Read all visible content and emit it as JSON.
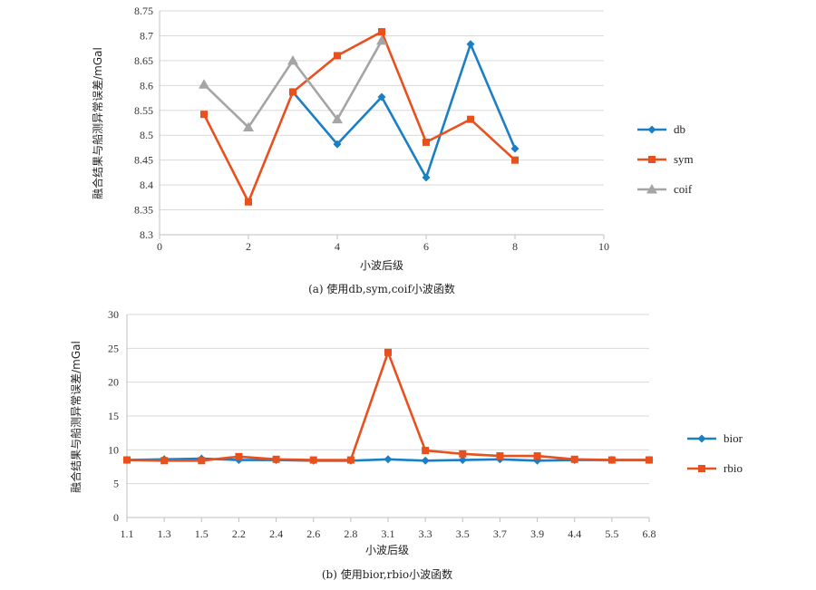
{
  "chart_data": [
    {
      "type": "line",
      "caption": "(a) 使用db,sym,coif小波函数",
      "xlabel": "小波后级",
      "ylabel": "融合结果与船测异常误差/mGal",
      "xlim": [
        0,
        10
      ],
      "ylim": [
        8.3,
        8.75
      ],
      "xticks": [
        "0",
        "2",
        "4",
        "6",
        "8",
        "10"
      ],
      "yticks": [
        "8.3",
        "8.35",
        "8.4",
        "8.45",
        "8.5",
        "8.55",
        "8.6",
        "8.65",
        "8.7",
        "8.75"
      ],
      "grid": true,
      "legend": "right",
      "series": [
        {
          "name": "db",
          "color": "#1a7fc4",
          "marker": "diamond",
          "x": [
            3,
            4,
            5,
            6,
            7,
            8
          ],
          "y": [
            8.587,
            8.482,
            8.577,
            8.415,
            8.683,
            8.473
          ]
        },
        {
          "name": "sym",
          "color": "#e8501e",
          "marker": "square",
          "x": [
            1,
            2,
            3,
            4,
            5,
            6,
            7,
            8
          ],
          "y": [
            8.542,
            8.366,
            8.587,
            8.66,
            8.708,
            8.486,
            8.532,
            8.45
          ]
        },
        {
          "name": "coif",
          "color": "#a5a5a5",
          "marker": "triangle",
          "x": [
            1,
            2,
            3,
            4,
            5
          ],
          "y": [
            8.602,
            8.516,
            8.65,
            8.532,
            8.69
          ]
        }
      ]
    },
    {
      "type": "line",
      "caption": "(b) 使用bior,rbio小波函数",
      "xlabel": "小波后级",
      "ylabel": "融合结果与船测异常误差/mGal",
      "categories": [
        "1.1",
        "1.3",
        "1.5",
        "2.2",
        "2.4",
        "2.6",
        "2.8",
        "3.1",
        "3.3",
        "3.5",
        "3.7",
        "3.9",
        "4.4",
        "5.5",
        "6.8"
      ],
      "ylim": [
        0,
        30
      ],
      "yticks": [
        "0",
        "5",
        "10",
        "15",
        "20",
        "25",
        "30"
      ],
      "grid": true,
      "legend": "right",
      "series": [
        {
          "name": "bior",
          "color": "#1a7fc4",
          "marker": "diamond",
          "values": [
            8.5,
            8.6,
            8.7,
            8.5,
            8.5,
            8.4,
            8.4,
            8.6,
            8.4,
            8.5,
            8.6,
            8.4,
            8.5,
            8.5,
            8.5
          ]
        },
        {
          "name": "rbio",
          "color": "#e8501e",
          "marker": "square",
          "values": [
            8.5,
            8.4,
            8.4,
            9.0,
            8.6,
            8.5,
            8.5,
            24.4,
            9.9,
            9.4,
            9.1,
            9.1,
            8.6,
            8.5,
            8.5
          ]
        }
      ]
    }
  ]
}
